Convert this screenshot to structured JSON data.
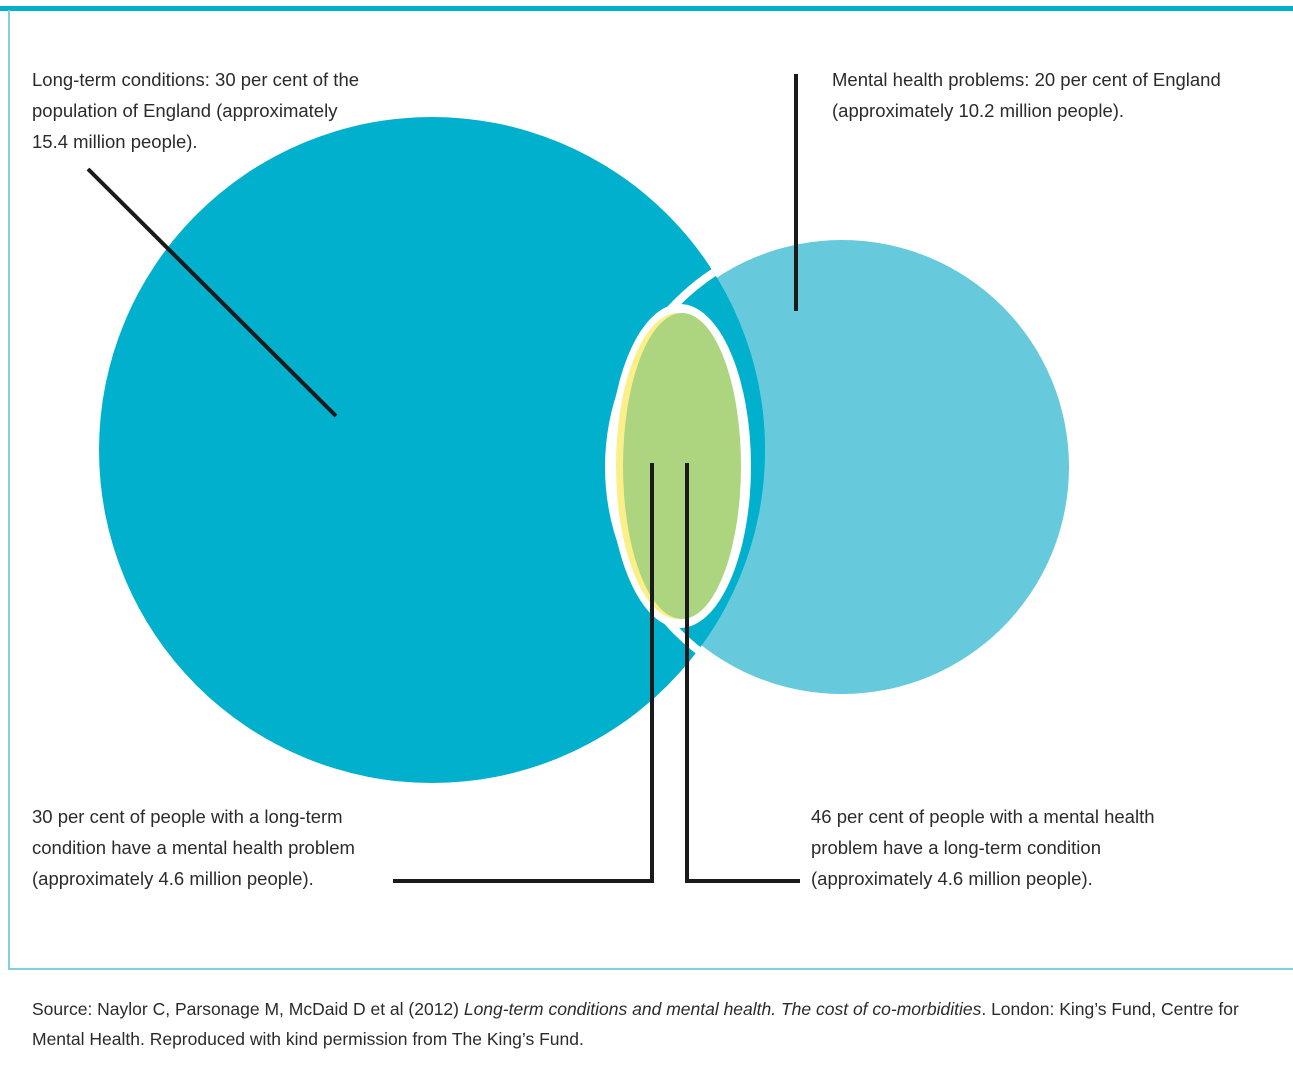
{
  "colors": {
    "rule": "#00b0cc",
    "frame": "#7fd1e0",
    "long_term_circle": "#00b0cc",
    "mental_health_circle": "#66c9dc",
    "overlap_green": "#add580",
    "overlap_yellow": "#fbef8a",
    "leader_lines": "#1a1a1a"
  },
  "labels": {
    "long_term_conditions": "Long-term conditions: 30 per cent of the\npopulation of England (approximately\n15.4 million people).",
    "mental_health_problems": "Mental health problems: 20 per cent of England\n(approximately 10.2 million people).",
    "ltc_with_mh": "30 per cent of people with a long-term\ncondition have a mental health problem\n(approximately 4.6 million people).",
    "mh_with_ltc": "46 per cent of people with a mental health\nproblem have a long-term condition\n(approximately 4.6 million people)."
  },
  "source": {
    "prefix": "Source: Naylor C, Parsonage M, McDaid D et al (2012) ",
    "title": "Long-term conditions and mental health. The cost of co-morbidities",
    "suffix": ". London: King’s Fund, Centre for Mental Health. Reproduced with kind permission from The King’s Fund."
  }
}
